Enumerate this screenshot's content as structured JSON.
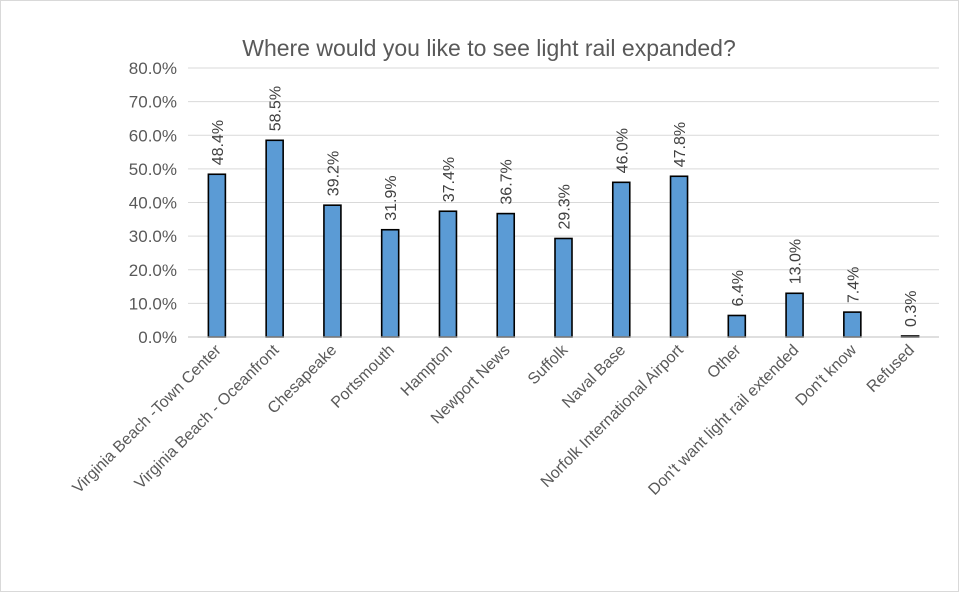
{
  "chart_data": {
    "type": "bar",
    "title": "Where would you like to see light rail expanded?",
    "xlabel": "",
    "ylabel": "",
    "ylim": [
      0,
      80
    ],
    "y_ticks": [
      "0.0%",
      "10.0%",
      "20.0%",
      "30.0%",
      "40.0%",
      "50.0%",
      "60.0%",
      "70.0%",
      "80.0%"
    ],
    "y_tick_values": [
      0,
      10,
      20,
      30,
      40,
      50,
      60,
      70,
      80
    ],
    "grid": true,
    "legend": "none",
    "bar_color": "#5b9bd5",
    "categories": [
      "Virginia Beach -Town Center",
      "Virginia Beach - Oceanfront",
      "Chesapeake",
      "Portsmouth",
      "Hampton",
      "Newport News",
      "Suffolk",
      "Naval Base",
      "Norfolk International Airport",
      "Other",
      "Don't want light rail extended",
      "Don't know",
      "Refused"
    ],
    "values": [
      48.4,
      58.5,
      39.2,
      31.9,
      37.4,
      36.7,
      29.3,
      46.0,
      47.8,
      6.4,
      13.0,
      7.4,
      0.3
    ],
    "data_labels": [
      "48.4%",
      "58.5%",
      "39.2%",
      "31.9%",
      "37.4%",
      "36.7%",
      "29.3%",
      "46.0%",
      "47.8%",
      "6.4%",
      "13.0%",
      "7.4%",
      "0.3%"
    ]
  }
}
